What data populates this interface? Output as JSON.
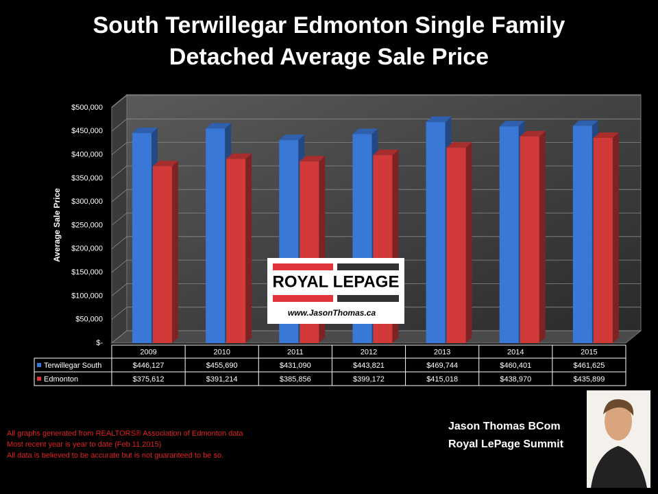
{
  "chart_data": {
    "type": "bar",
    "title": "South Terwillegar Edmonton Single Family Detached Average Sale Price",
    "ylabel": "Average Sale Price",
    "categories": [
      "2009",
      "2010",
      "2011",
      "2012",
      "2013",
      "2014",
      "2015"
    ],
    "series": [
      {
        "name": "Terwillegar South",
        "color": "#3a78d8",
        "values": [
          446127,
          455690,
          431090,
          443821,
          469744,
          460401,
          461625
        ],
        "value_labels": [
          "$446,127",
          "$455,690",
          "$431,090",
          "$443,821",
          "$469,744",
          "$460,401",
          "$461,625"
        ]
      },
      {
        "name": "Edmonton",
        "color": "#d23a3a",
        "values": [
          375612,
          391214,
          385856,
          399172,
          415018,
          438970,
          435899
        ],
        "value_labels": [
          "$375,612",
          "$391,214",
          "$385,856",
          "$399,172",
          "$415,018",
          "$438,970",
          "$435,899"
        ]
      }
    ],
    "ylim": [
      0,
      500000
    ],
    "yticks": [
      {
        "value": 0,
        "label": "$-"
      },
      {
        "value": 50000,
        "label": "$50,000"
      },
      {
        "value": 100000,
        "label": "$100,000"
      },
      {
        "value": 150000,
        "label": "$150,000"
      },
      {
        "value": 200000,
        "label": "$200,000"
      },
      {
        "value": 250000,
        "label": "$250,000"
      },
      {
        "value": 300000,
        "label": "$300,000"
      },
      {
        "value": 350000,
        "label": "$350,000"
      },
      {
        "value": 400000,
        "label": "$400,000"
      },
      {
        "value": 450000,
        "label": "$450,000"
      },
      {
        "value": 500000,
        "label": "$500,000"
      }
    ],
    "grid": true
  },
  "logo": {
    "brand": "ROYAL LEPAGE",
    "url": "www.JasonThomas.ca"
  },
  "notes": [
    "All graphs generated from REALTORS® Association of Edmonton data",
    "Most recent year is year to date (Feb 11 2015)",
    "All data is believed to be accurate but is not guaranteed to be so."
  ],
  "signature": [
    "Jason Thomas BCom",
    "Royal LePage Summit"
  ]
}
